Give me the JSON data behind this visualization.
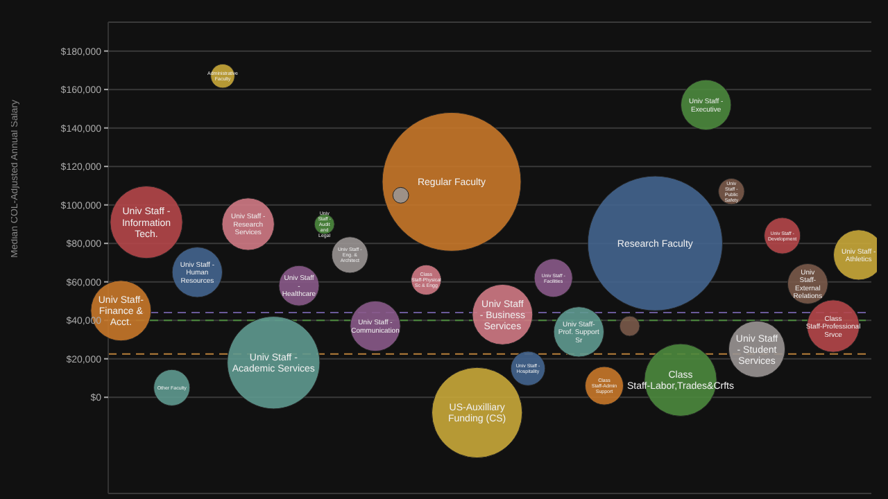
{
  "chart_data": {
    "type": "bubble",
    "ylabel": "Median COL-Adjusted Annual Salary",
    "categories": [
      null,
      null,
      null,
      null,
      null,
      null,
      null,
      null,
      null,
      null,
      null,
      null,
      null,
      null,
      null,
      null,
      null,
      null,
      null,
      null,
      null,
      null,
      null,
      null,
      null,
      null,
      null,
      null,
      null,
      null
    ],
    "series": [
      {
        "name": "Univ Staff- Finance & Acct.",
        "color": "#c8782a",
        "values": [
          45000,
          null,
          null,
          null,
          null,
          null,
          null,
          null,
          null,
          null,
          null,
          null,
          null,
          null,
          null,
          null,
          null,
          null,
          null,
          null,
          null,
          null,
          null,
          null,
          null,
          null,
          null,
          null,
          null,
          null
        ],
        "sizes": [
          0.189,
          null,
          null,
          null,
          null,
          null,
          null,
          null,
          null,
          null,
          null,
          null,
          null,
          null,
          null,
          null,
          null,
          null,
          null,
          null,
          null,
          null,
          null,
          null,
          null,
          null,
          null,
          null,
          null,
          null
        ]
      },
      {
        "name": "Univ Staff - Information Tech.",
        "color": "#b5474a",
        "values": [
          null,
          91000,
          null,
          null,
          null,
          null,
          null,
          null,
          null,
          null,
          null,
          null,
          null,
          null,
          null,
          null,
          null,
          null,
          null,
          null,
          null,
          null,
          null,
          null,
          null,
          null,
          null,
          null,
          null,
          null
        ],
        "sizes": [
          null,
          0.272,
          null,
          null,
          null,
          null,
          null,
          null,
          null,
          null,
          null,
          null,
          null,
          null,
          null,
          null,
          null,
          null,
          null,
          null,
          null,
          null,
          null,
          null,
          null,
          null,
          null,
          null,
          null,
          null
        ]
      },
      {
        "name": "Other Faculty",
        "color": "#5f9a90",
        "values": [
          null,
          null,
          5000,
          null,
          null,
          null,
          null,
          null,
          null,
          null,
          null,
          null,
          null,
          null,
          null,
          null,
          null,
          null,
          null,
          null,
          null,
          null,
          null,
          null,
          null,
          null,
          null,
          null,
          null,
          null
        ],
        "sizes": [
          null,
          null,
          0.068,
          null,
          null,
          null,
          null,
          null,
          null,
          null,
          null,
          null,
          null,
          null,
          null,
          null,
          null,
          null,
          null,
          null,
          null,
          null,
          null,
          null,
          null,
          null,
          null,
          null,
          null,
          null
        ]
      },
      {
        "name": "Univ Staff - Human Resources",
        "color": "#44658f",
        "values": [
          null,
          null,
          null,
          65000,
          null,
          null,
          null,
          null,
          null,
          null,
          null,
          null,
          null,
          null,
          null,
          null,
          null,
          null,
          null,
          null,
          null,
          null,
          null,
          null,
          null,
          null,
          null,
          null,
          null,
          null
        ],
        "sizes": [
          null,
          null,
          null,
          0.131,
          null,
          null,
          null,
          null,
          null,
          null,
          null,
          null,
          null,
          null,
          null,
          null,
          null,
          null,
          null,
          null,
          null,
          null,
          null,
          null,
          null,
          null,
          null,
          null,
          null,
          null
        ]
      },
      {
        "name": "Administrative Faculty",
        "color": "#c9a83a",
        "values": [
          null,
          null,
          null,
          null,
          167000,
          null,
          null,
          null,
          null,
          null,
          null,
          null,
          null,
          null,
          null,
          null,
          null,
          null,
          null,
          null,
          null,
          null,
          null,
          null,
          null,
          null,
          null,
          null,
          null,
          null
        ],
        "sizes": [
          null,
          null,
          null,
          null,
          0.03,
          null,
          null,
          null,
          null,
          null,
          null,
          null,
          null,
          null,
          null,
          null,
          null,
          null,
          null,
          null,
          null,
          null,
          null,
          null,
          null,
          null,
          null,
          null,
          null,
          null
        ]
      },
      {
        "name": "Univ Staff - Research Services",
        "color": "#d07a85",
        "values": [
          null,
          null,
          null,
          null,
          null,
          90000,
          null,
          null,
          null,
          null,
          null,
          null,
          null,
          null,
          null,
          null,
          null,
          null,
          null,
          null,
          null,
          null,
          null,
          null,
          null,
          null,
          null,
          null,
          null,
          null
        ],
        "sizes": [
          null,
          null,
          null,
          null,
          null,
          0.142,
          null,
          null,
          null,
          null,
          null,
          null,
          null,
          null,
          null,
          null,
          null,
          null,
          null,
          null,
          null,
          null,
          null,
          null,
          null,
          null,
          null,
          null,
          null,
          null
        ]
      },
      {
        "name": "Univ Staff - Academic Services",
        "color": "#5f9a90",
        "values": [
          null,
          null,
          null,
          null,
          null,
          null,
          18000,
          null,
          null,
          null,
          null,
          null,
          null,
          null,
          null,
          null,
          null,
          null,
          null,
          null,
          null,
          null,
          null,
          null,
          null,
          null,
          null,
          null,
          null,
          null
        ],
        "sizes": [
          null,
          null,
          null,
          null,
          null,
          null,
          0.444,
          null,
          null,
          null,
          null,
          null,
          null,
          null,
          null,
          null,
          null,
          null,
          null,
          null,
          null,
          null,
          null,
          null,
          null,
          null,
          null,
          null,
          null,
          null
        ]
      },
      {
        "name": "Univ Staff - Healthcare",
        "color": "#8a5a8a",
        "values": [
          null,
          null,
          null,
          null,
          null,
          null,
          null,
          58000,
          null,
          null,
          null,
          null,
          null,
          null,
          null,
          null,
          null,
          null,
          null,
          null,
          null,
          null,
          null,
          null,
          null,
          null,
          null,
          null,
          null,
          null
        ],
        "sizes": [
          null,
          null,
          null,
          null,
          null,
          null,
          null,
          0.084,
          null,
          null,
          null,
          null,
          null,
          null,
          null,
          null,
          null,
          null,
          null,
          null,
          null,
          null,
          null,
          null,
          null,
          null,
          null,
          null,
          null,
          null
        ]
      },
      {
        "color": "#9a9593",
        "values": [
          null,
          null,
          null,
          null,
          null,
          null,
          null,
          null,
          null,
          null,
          null,
          105000,
          null,
          null,
          null,
          null,
          null,
          null,
          null,
          null,
          null,
          null,
          null,
          null,
          null,
          null,
          null,
          null,
          null,
          null
        ],
        "sizes": [
          null,
          null,
          null,
          null,
          null,
          null,
          null,
          null,
          null,
          null,
          null,
          0.013,
          null,
          null,
          null,
          null,
          null,
          null,
          null,
          null,
          null,
          null,
          null,
          null,
          null,
          null,
          null,
          null,
          null,
          null
        ]
      },
      {
        "name": "Univ Staff - Eng. & Architect",
        "color": "#9a9593",
        "values": [
          null,
          null,
          null,
          null,
          null,
          null,
          null,
          null,
          null,
          74000,
          null,
          null,
          null,
          null,
          null,
          null,
          null,
          null,
          null,
          null,
          null,
          null,
          null,
          null,
          null,
          null,
          null,
          null,
          null,
          null
        ],
        "sizes": [
          null,
          null,
          null,
          null,
          null,
          null,
          null,
          null,
          null,
          0.068,
          null,
          null,
          null,
          null,
          null,
          null,
          null,
          null,
          null,
          null,
          null,
          null,
          null,
          null,
          null,
          null,
          null,
          null,
          null,
          null
        ]
      },
      {
        "name": "Univ Staff - Communication",
        "color": "#8a5a8a",
        "values": [
          null,
          null,
          null,
          null,
          null,
          null,
          null,
          null,
          null,
          null,
          37000,
          null,
          null,
          null,
          null,
          null,
          null,
          null,
          null,
          null,
          null,
          null,
          null,
          null,
          null,
          null,
          null,
          null,
          null,
          null
        ],
        "sizes": [
          null,
          null,
          null,
          null,
          null,
          null,
          null,
          null,
          null,
          null,
          0.131,
          null,
          null,
          null,
          null,
          null,
          null,
          null,
          null,
          null,
          null,
          null,
          null,
          null,
          null,
          null,
          null,
          null,
          null,
          null
        ]
      },
      {
        "name": "Univ Staff - Audit and Legal",
        "color": "#4c8a3e",
        "values": [
          null,
          null,
          null,
          null,
          null,
          null,
          null,
          null,
          90000,
          null,
          null,
          null,
          null,
          null,
          null,
          null,
          null,
          null,
          null,
          null,
          null,
          null,
          null,
          null,
          null,
          null,
          null,
          null,
          null,
          null
        ],
        "sizes": [
          null,
          null,
          null,
          null,
          null,
          null,
          null,
          null,
          0.021,
          null,
          null,
          null,
          null,
          null,
          null,
          null,
          null,
          null,
          null,
          null,
          null,
          null,
          null,
          null,
          null,
          null,
          null,
          null,
          null,
          null
        ]
      },
      {
        "name": "Class Staff-Physical Sc & Engg",
        "color": "#d07a85",
        "values": [
          null,
          null,
          null,
          null,
          null,
          null,
          null,
          null,
          null,
          null,
          null,
          null,
          61000,
          null,
          null,
          null,
          null,
          null,
          null,
          null,
          null,
          null,
          null,
          null,
          null,
          null,
          null,
          null,
          null,
          null
        ],
        "sizes": [
          null,
          null,
          null,
          null,
          null,
          null,
          null,
          null,
          null,
          null,
          null,
          null,
          0.047,
          null,
          null,
          null,
          null,
          null,
          null,
          null,
          null,
          null,
          null,
          null,
          null,
          null,
          null,
          null,
          null,
          null
        ]
      },
      {
        "name": "Regular Faculty",
        "color": "#c8782a",
        "values": [
          null,
          null,
          null,
          null,
          null,
          null,
          null,
          null,
          null,
          null,
          null,
          null,
          null,
          112000,
          null,
          null,
          null,
          null,
          null,
          null,
          null,
          null,
          null,
          null,
          null,
          null,
          null,
          null,
          null,
          null
        ],
        "sizes": [
          null,
          null,
          null,
          null,
          null,
          null,
          null,
          null,
          null,
          null,
          null,
          null,
          null,
          1,
          null,
          null,
          null,
          null,
          null,
          null,
          null,
          null,
          null,
          null,
          null,
          null,
          null,
          null,
          null,
          null
        ]
      },
      {
        "name": "US-Auxilliary Funding (CS)",
        "color": "#c9a83a",
        "values": [
          null,
          null,
          null,
          null,
          null,
          null,
          null,
          null,
          null,
          null,
          null,
          null,
          null,
          null,
          -8000,
          null,
          null,
          null,
          null,
          null,
          null,
          null,
          null,
          null,
          null,
          null,
          null,
          null,
          null,
          null
        ],
        "sizes": [
          null,
          null,
          null,
          null,
          null,
          null,
          null,
          null,
          null,
          null,
          null,
          null,
          null,
          null,
          0.425,
          null,
          null,
          null,
          null,
          null,
          null,
          null,
          null,
          null,
          null,
          null,
          null,
          null,
          null,
          null
        ]
      },
      {
        "name": "Univ Staff - Business Services",
        "color": "#d07a85",
        "values": [
          null,
          null,
          null,
          null,
          null,
          null,
          null,
          null,
          null,
          null,
          null,
          null,
          null,
          null,
          null,
          43000,
          null,
          null,
          null,
          null,
          null,
          null,
          null,
          null,
          null,
          null,
          null,
          null,
          null,
          null
        ],
        "sizes": [
          null,
          null,
          null,
          null,
          null,
          null,
          null,
          null,
          null,
          null,
          null,
          null,
          null,
          null,
          null,
          0.189,
          null,
          null,
          null,
          null,
          null,
          null,
          null,
          null,
          null,
          null,
          null,
          null,
          null,
          null
        ]
      },
      {
        "name": "Univ Staff - Hospitality",
        "color": "#44658f",
        "values": [
          null,
          null,
          null,
          null,
          null,
          null,
          null,
          null,
          null,
          null,
          null,
          null,
          null,
          null,
          null,
          null,
          15000,
          null,
          null,
          null,
          null,
          null,
          null,
          null,
          null,
          null,
          null,
          null,
          null,
          null
        ],
        "sizes": [
          null,
          null,
          null,
          null,
          null,
          null,
          null,
          null,
          null,
          null,
          null,
          null,
          null,
          null,
          null,
          null,
          0.061,
          null,
          null,
          null,
          null,
          null,
          null,
          null,
          null,
          null,
          null,
          null,
          null,
          null
        ]
      },
      {
        "name": "Univ Staff - Facilities",
        "color": "#8a5a8a",
        "values": [
          null,
          null,
          null,
          null,
          null,
          null,
          null,
          null,
          null,
          null,
          null,
          null,
          null,
          null,
          null,
          null,
          null,
          62000,
          null,
          null,
          null,
          null,
          null,
          null,
          null,
          null,
          null,
          null,
          null,
          null
        ],
        "sizes": [
          null,
          null,
          null,
          null,
          null,
          null,
          null,
          null,
          null,
          null,
          null,
          null,
          null,
          null,
          null,
          null,
          null,
          0.076,
          null,
          null,
          null,
          null,
          null,
          null,
          null,
          null,
          null,
          null,
          null,
          null
        ]
      },
      {
        "name": "Univ Staff- Prof. Support Sr",
        "color": "#5f9a90",
        "values": [
          null,
          null,
          null,
          null,
          null,
          null,
          null,
          null,
          null,
          null,
          null,
          null,
          null,
          null,
          null,
          null,
          null,
          null,
          34000,
          null,
          null,
          null,
          null,
          null,
          null,
          null,
          null,
          null,
          null,
          null
        ],
        "sizes": [
          null,
          null,
          null,
          null,
          null,
          null,
          null,
          null,
          null,
          null,
          null,
          null,
          null,
          null,
          null,
          null,
          null,
          null,
          0.131,
          null,
          null,
          null,
          null,
          null,
          null,
          null,
          null,
          null,
          null,
          null
        ]
      },
      {
        "name": "Class Staff-Admin Support",
        "color": "#c8782a",
        "values": [
          null,
          null,
          null,
          null,
          null,
          null,
          null,
          null,
          null,
          null,
          null,
          null,
          null,
          null,
          null,
          null,
          null,
          null,
          null,
          6000,
          null,
          null,
          null,
          null,
          null,
          null,
          null,
          null,
          null,
          null
        ],
        "sizes": [
          null,
          null,
          null,
          null,
          null,
          null,
          null,
          null,
          null,
          null,
          null,
          null,
          null,
          null,
          null,
          null,
          null,
          null,
          null,
          0.076,
          null,
          null,
          null,
          null,
          null,
          null,
          null,
          null,
          null,
          null
        ]
      },
      {
        "color": "#7a5a4a",
        "values": [
          null,
          null,
          null,
          null,
          null,
          null,
          null,
          null,
          null,
          null,
          null,
          null,
          null,
          null,
          null,
          null,
          null,
          null,
          null,
          null,
          37000,
          null,
          null,
          null,
          null,
          null,
          null,
          null,
          null,
          null
        ],
        "sizes": [
          null,
          null,
          null,
          null,
          null,
          null,
          null,
          null,
          null,
          null,
          null,
          null,
          null,
          null,
          null,
          null,
          null,
          null,
          null,
          null,
          0.021,
          null,
          null,
          null,
          null,
          null,
          null,
          null,
          null,
          null
        ]
      },
      {
        "name": "Research Faculty",
        "color": "#44658f",
        "values": [
          null,
          null,
          null,
          null,
          null,
          null,
          null,
          null,
          null,
          null,
          null,
          null,
          null,
          null,
          null,
          null,
          null,
          null,
          null,
          null,
          null,
          80000,
          null,
          null,
          null,
          null,
          null,
          null,
          null,
          null
        ],
        "sizes": [
          null,
          null,
          null,
          null,
          null,
          null,
          null,
          null,
          null,
          null,
          null,
          null,
          null,
          null,
          null,
          null,
          null,
          null,
          null,
          null,
          null,
          0.943,
          null,
          null,
          null,
          null,
          null,
          null,
          null,
          null
        ]
      },
      {
        "name": "Class Staff-Labor,Trades&Crfts",
        "color": "#4c8a3e",
        "values": [
          null,
          null,
          null,
          null,
          null,
          null,
          null,
          null,
          null,
          null,
          null,
          null,
          null,
          null,
          null,
          null,
          null,
          null,
          null,
          null,
          null,
          null,
          9000,
          null,
          null,
          null,
          null,
          null,
          null,
          null
        ],
        "sizes": [
          null,
          null,
          null,
          null,
          null,
          null,
          null,
          null,
          null,
          null,
          null,
          null,
          null,
          null,
          null,
          null,
          null,
          null,
          null,
          null,
          null,
          null,
          0.272,
          null,
          null,
          null,
          null,
          null,
          null,
          null
        ]
      },
      {
        "name": "Univ Staff - Executive",
        "color": "#4c8a3e",
        "values": [
          null,
          null,
          null,
          null,
          null,
          null,
          null,
          null,
          null,
          null,
          null,
          null,
          null,
          null,
          null,
          null,
          null,
          null,
          null,
          null,
          null,
          null,
          null,
          152000,
          null,
          null,
          null,
          null,
          null,
          null
        ],
        "sizes": [
          null,
          null,
          null,
          null,
          null,
          null,
          null,
          null,
          null,
          null,
          null,
          null,
          null,
          null,
          null,
          null,
          null,
          null,
          null,
          null,
          null,
          null,
          null,
          0.131,
          null,
          null,
          null,
          null,
          null,
          null
        ]
      },
      {
        "name": "Univ Staff - Public Safety",
        "color": "#7a5a4a",
        "values": [
          null,
          null,
          null,
          null,
          null,
          null,
          null,
          null,
          null,
          null,
          null,
          null,
          null,
          null,
          null,
          null,
          null,
          null,
          null,
          null,
          null,
          null,
          null,
          null,
          107000,
          null,
          null,
          null,
          null,
          null
        ],
        "sizes": [
          null,
          null,
          null,
          null,
          null,
          null,
          null,
          null,
          null,
          null,
          null,
          null,
          null,
          null,
          null,
          null,
          null,
          null,
          null,
          null,
          null,
          null,
          null,
          null,
          0.035,
          null,
          null,
          null,
          null,
          null
        ]
      },
      {
        "name": "Univ Staff - Student Services",
        "color": "#9a9593",
        "values": [
          null,
          null,
          null,
          null,
          null,
          null,
          null,
          null,
          null,
          null,
          null,
          null,
          null,
          null,
          null,
          null,
          null,
          null,
          null,
          null,
          null,
          null,
          null,
          null,
          null,
          25000,
          null,
          null,
          null,
          null
        ],
        "sizes": [
          null,
          null,
          null,
          null,
          null,
          null,
          null,
          null,
          null,
          null,
          null,
          null,
          null,
          null,
          null,
          null,
          null,
          null,
          null,
          null,
          null,
          null,
          null,
          null,
          null,
          0.165,
          null,
          null,
          null,
          null
        ]
      },
      {
        "name": "Univ Staff - Development",
        "color": "#b5474a",
        "values": [
          null,
          null,
          null,
          null,
          null,
          null,
          null,
          null,
          null,
          null,
          null,
          null,
          null,
          null,
          null,
          null,
          null,
          null,
          null,
          null,
          null,
          null,
          null,
          null,
          null,
          null,
          84000,
          null,
          null,
          null
        ],
        "sizes": [
          null,
          null,
          null,
          null,
          null,
          null,
          null,
          null,
          null,
          null,
          null,
          null,
          null,
          null,
          null,
          null,
          null,
          null,
          null,
          null,
          null,
          null,
          null,
          null,
          null,
          null,
          0.068,
          null,
          null,
          null
        ]
      },
      {
        "name": "Univ Staff- External Relations",
        "color": "#7a5a4a",
        "values": [
          null,
          null,
          null,
          null,
          null,
          null,
          null,
          null,
          null,
          null,
          null,
          null,
          null,
          null,
          null,
          null,
          null,
          null,
          null,
          null,
          null,
          null,
          null,
          null,
          null,
          null,
          null,
          59000,
          null,
          null
        ],
        "sizes": [
          null,
          null,
          null,
          null,
          null,
          null,
          null,
          null,
          null,
          null,
          null,
          null,
          null,
          null,
          null,
          null,
          null,
          null,
          null,
          null,
          null,
          null,
          null,
          null,
          null,
          null,
          null,
          0.084,
          null,
          null
        ]
      },
      {
        "name": "Class Staff-Professional Srvce",
        "color": "#b5474a",
        "values": [
          null,
          null,
          null,
          null,
          null,
          null,
          null,
          null,
          null,
          null,
          null,
          null,
          null,
          null,
          null,
          null,
          null,
          null,
          null,
          null,
          null,
          null,
          null,
          null,
          null,
          null,
          null,
          null,
          37000,
          null
        ],
        "sizes": [
          null,
          null,
          null,
          null,
          null,
          null,
          null,
          null,
          null,
          null,
          null,
          null,
          null,
          null,
          null,
          null,
          null,
          null,
          null,
          null,
          null,
          null,
          null,
          null,
          null,
          null,
          null,
          null,
          0.142,
          null
        ]
      },
      {
        "name": "Univ Staff - Athletics",
        "color": "#c9a83a",
        "values": [
          null,
          null,
          null,
          null,
          null,
          null,
          null,
          null,
          null,
          null,
          null,
          null,
          null,
          null,
          null,
          null,
          null,
          null,
          null,
          null,
          null,
          null,
          null,
          null,
          null,
          null,
          null,
          null,
          null,
          74000
        ],
        "sizes": [
          null,
          null,
          null,
          null,
          null,
          null,
          null,
          null,
          null,
          null,
          null,
          null,
          null,
          null,
          null,
          null,
          null,
          null,
          null,
          null,
          null,
          null,
          null,
          null,
          null,
          null,
          null,
          null,
          null,
          0.131
        ]
      }
    ],
    "ylim": [
      -50000,
      195000
    ],
    "yticks": [
      {
        "value": 0,
        "label": "$0"
      },
      {
        "value": 20000,
        "label": "$20,000"
      },
      {
        "value": 40000,
        "label": "$40,000"
      },
      {
        "value": 60000,
        "label": "$60,000"
      },
      {
        "value": 80000,
        "label": "$80,000"
      },
      {
        "value": 100000,
        "label": "$100,000"
      },
      {
        "value": 120000,
        "label": "$120,000"
      },
      {
        "value": 140000,
        "label": "$140,000"
      },
      {
        "value": 160000,
        "label": "$160,000"
      },
      {
        "value": 180000,
        "label": "$180,000"
      }
    ],
    "ref_lines": [
      {
        "axis": "y",
        "value": 44000,
        "color": "#6a5a9a",
        "line_style": "dashed"
      },
      {
        "axis": "y",
        "value": 40000,
        "color": "#4c8a3e",
        "line_style": "dashed"
      },
      {
        "axis": "y",
        "value": 22500,
        "color": "#b8803a",
        "line_style": "dashed"
      }
    ],
    "grid": "y",
    "tick_labels": "y",
    "legend": false
  }
}
